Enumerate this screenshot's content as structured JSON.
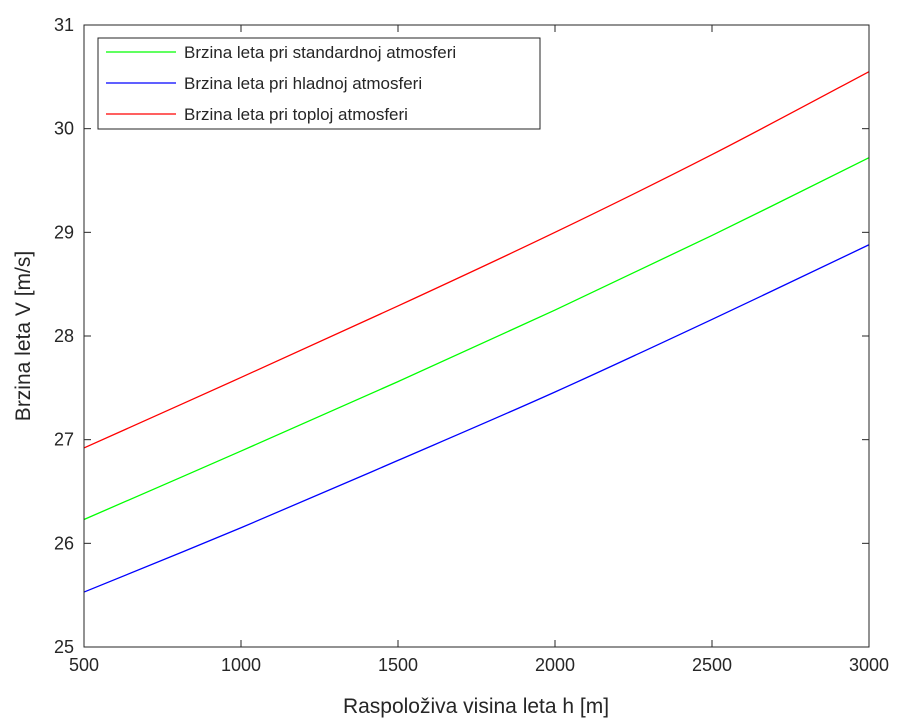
{
  "chart_data": {
    "type": "line",
    "title": "",
    "xlabel": "Raspoloživa visina leta h [m]",
    "ylabel": "Brzina leta V [m/s]",
    "xlim": [
      500,
      3000
    ],
    "ylim": [
      25,
      31
    ],
    "xticks": [
      500,
      1000,
      1500,
      2000,
      2500,
      3000
    ],
    "yticks": [
      25,
      26,
      27,
      28,
      29,
      30,
      31
    ],
    "grid": false,
    "legend_position": "top-left",
    "x": [
      500,
      1000,
      1500,
      2000,
      2500,
      3000
    ],
    "series": [
      {
        "name": "Brzina leta pri standardnoj atmosferi",
        "color": "#00ff00",
        "values": [
          26.23,
          26.89,
          27.56,
          28.25,
          28.97,
          29.72
        ]
      },
      {
        "name": "Brzina leta pri hladnoj atmosferi",
        "color": "#0000ff",
        "values": [
          25.53,
          26.15,
          26.8,
          27.46,
          28.16,
          28.88
        ]
      },
      {
        "name": "Brzina leta pri toploj atmosferi",
        "color": "#ff0000",
        "values": [
          26.92,
          27.6,
          28.29,
          29.0,
          29.75,
          30.55
        ]
      }
    ]
  }
}
